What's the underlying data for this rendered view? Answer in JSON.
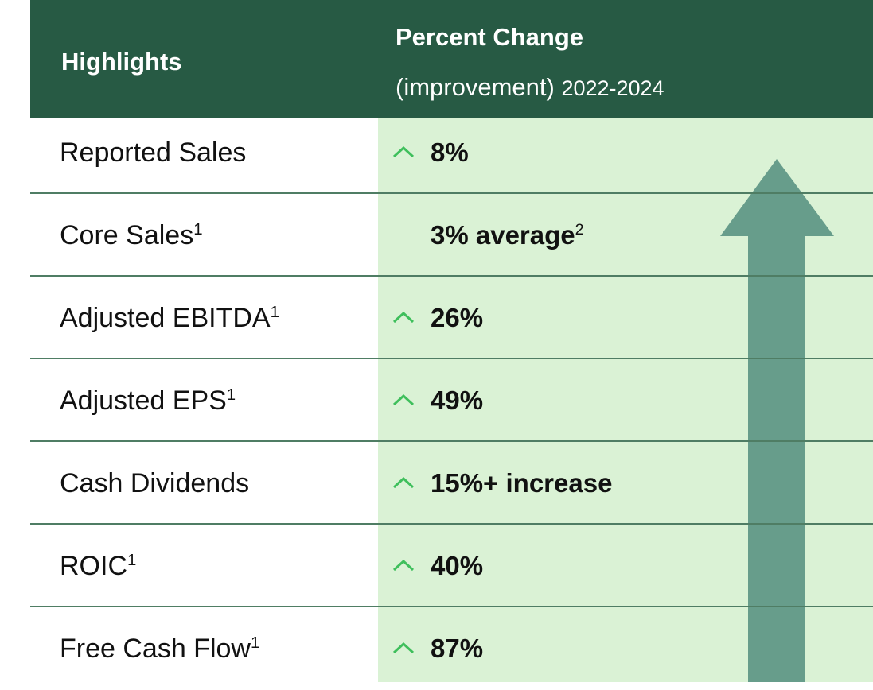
{
  "header": {
    "col1": "Highlights",
    "col2_title": "Percent Change",
    "col2_sub": "(improvement)",
    "col2_years": "2022-2024"
  },
  "table": {
    "rows": [
      {
        "label": "Reported Sales",
        "value": "8%"
      },
      {
        "label": "Core Sales",
        "label_sup": "1",
        "value": "3% average",
        "value_sup": "2"
      },
      {
        "label": "Adjusted EBITDA",
        "label_sup": "1",
        "value": "26%"
      },
      {
        "label": "Adjusted EPS",
        "label_sup": "1",
        "value": "49%"
      },
      {
        "label": "Cash Dividends",
        "value": "15%+ increase"
      },
      {
        "label": "ROIC",
        "label_sup": "1",
        "value": "40%"
      },
      {
        "label": "Free Cash Flow",
        "label_sup": "1",
        "value": "87%"
      }
    ]
  }
}
